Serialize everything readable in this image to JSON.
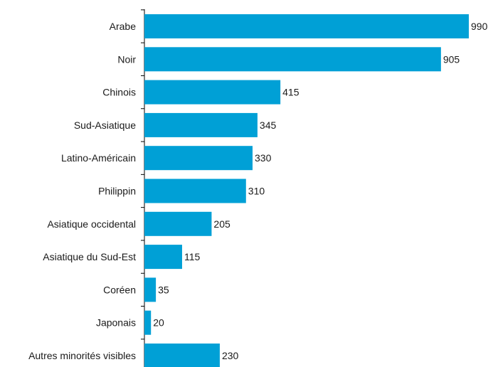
{
  "chart_data": {
    "type": "bar",
    "orientation": "horizontal",
    "title": "",
    "xlabel": "",
    "ylabel": "",
    "categories": [
      "Arabe",
      "Noir",
      "Chinois",
      "Sud-Asiatique",
      "Latino-Américain",
      "Philippin",
      "Asiatique occidental",
      "Asiatique du Sud-Est",
      "Coréen",
      "Japonais",
      "Autres minorités visibles"
    ],
    "values": [
      990,
      905,
      415,
      345,
      330,
      310,
      205,
      115,
      35,
      20,
      230
    ],
    "xlim": [
      0,
      990
    ],
    "grid": false,
    "legend": "none",
    "colors": {
      "bar": "#00a0d6",
      "axis": "#000000",
      "text": "#1a1a1a"
    }
  }
}
